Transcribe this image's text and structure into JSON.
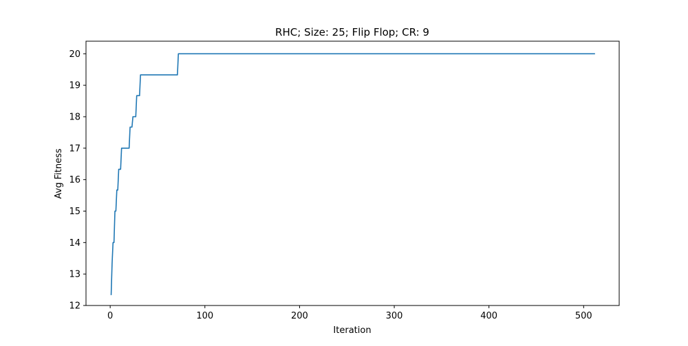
{
  "chart_data": {
    "type": "line",
    "title": "RHC; Size: 25; Flip Flop; CR: 9",
    "xlabel": "Iteration",
    "ylabel": "Avg Fitness",
    "xlim": [
      -25.55,
      537.55
    ],
    "ylim": [
      12.0,
      20.4
    ],
    "xticks": [
      0,
      100,
      200,
      300,
      400,
      500
    ],
    "yticks": [
      12,
      13,
      14,
      15,
      16,
      17,
      18,
      19,
      20
    ],
    "grid": false,
    "series": [
      {
        "color": "#1f77b4",
        "points": [
          [
            1,
            12.33
          ],
          [
            2,
            13.33
          ],
          [
            3,
            14.0
          ],
          [
            4,
            14.0
          ],
          [
            5,
            15.0
          ],
          [
            6,
            15.0
          ],
          [
            7,
            15.67
          ],
          [
            8,
            15.67
          ],
          [
            9,
            16.33
          ],
          [
            11,
            16.33
          ],
          [
            12,
            17.0
          ],
          [
            20,
            17.0
          ],
          [
            21,
            17.67
          ],
          [
            23,
            17.67
          ],
          [
            24,
            18.0
          ],
          [
            27,
            18.0
          ],
          [
            28,
            18.67
          ],
          [
            31,
            18.67
          ],
          [
            32,
            19.33
          ],
          [
            71,
            19.33
          ],
          [
            72,
            20.0
          ],
          [
            512,
            20.0
          ]
        ]
      }
    ]
  }
}
